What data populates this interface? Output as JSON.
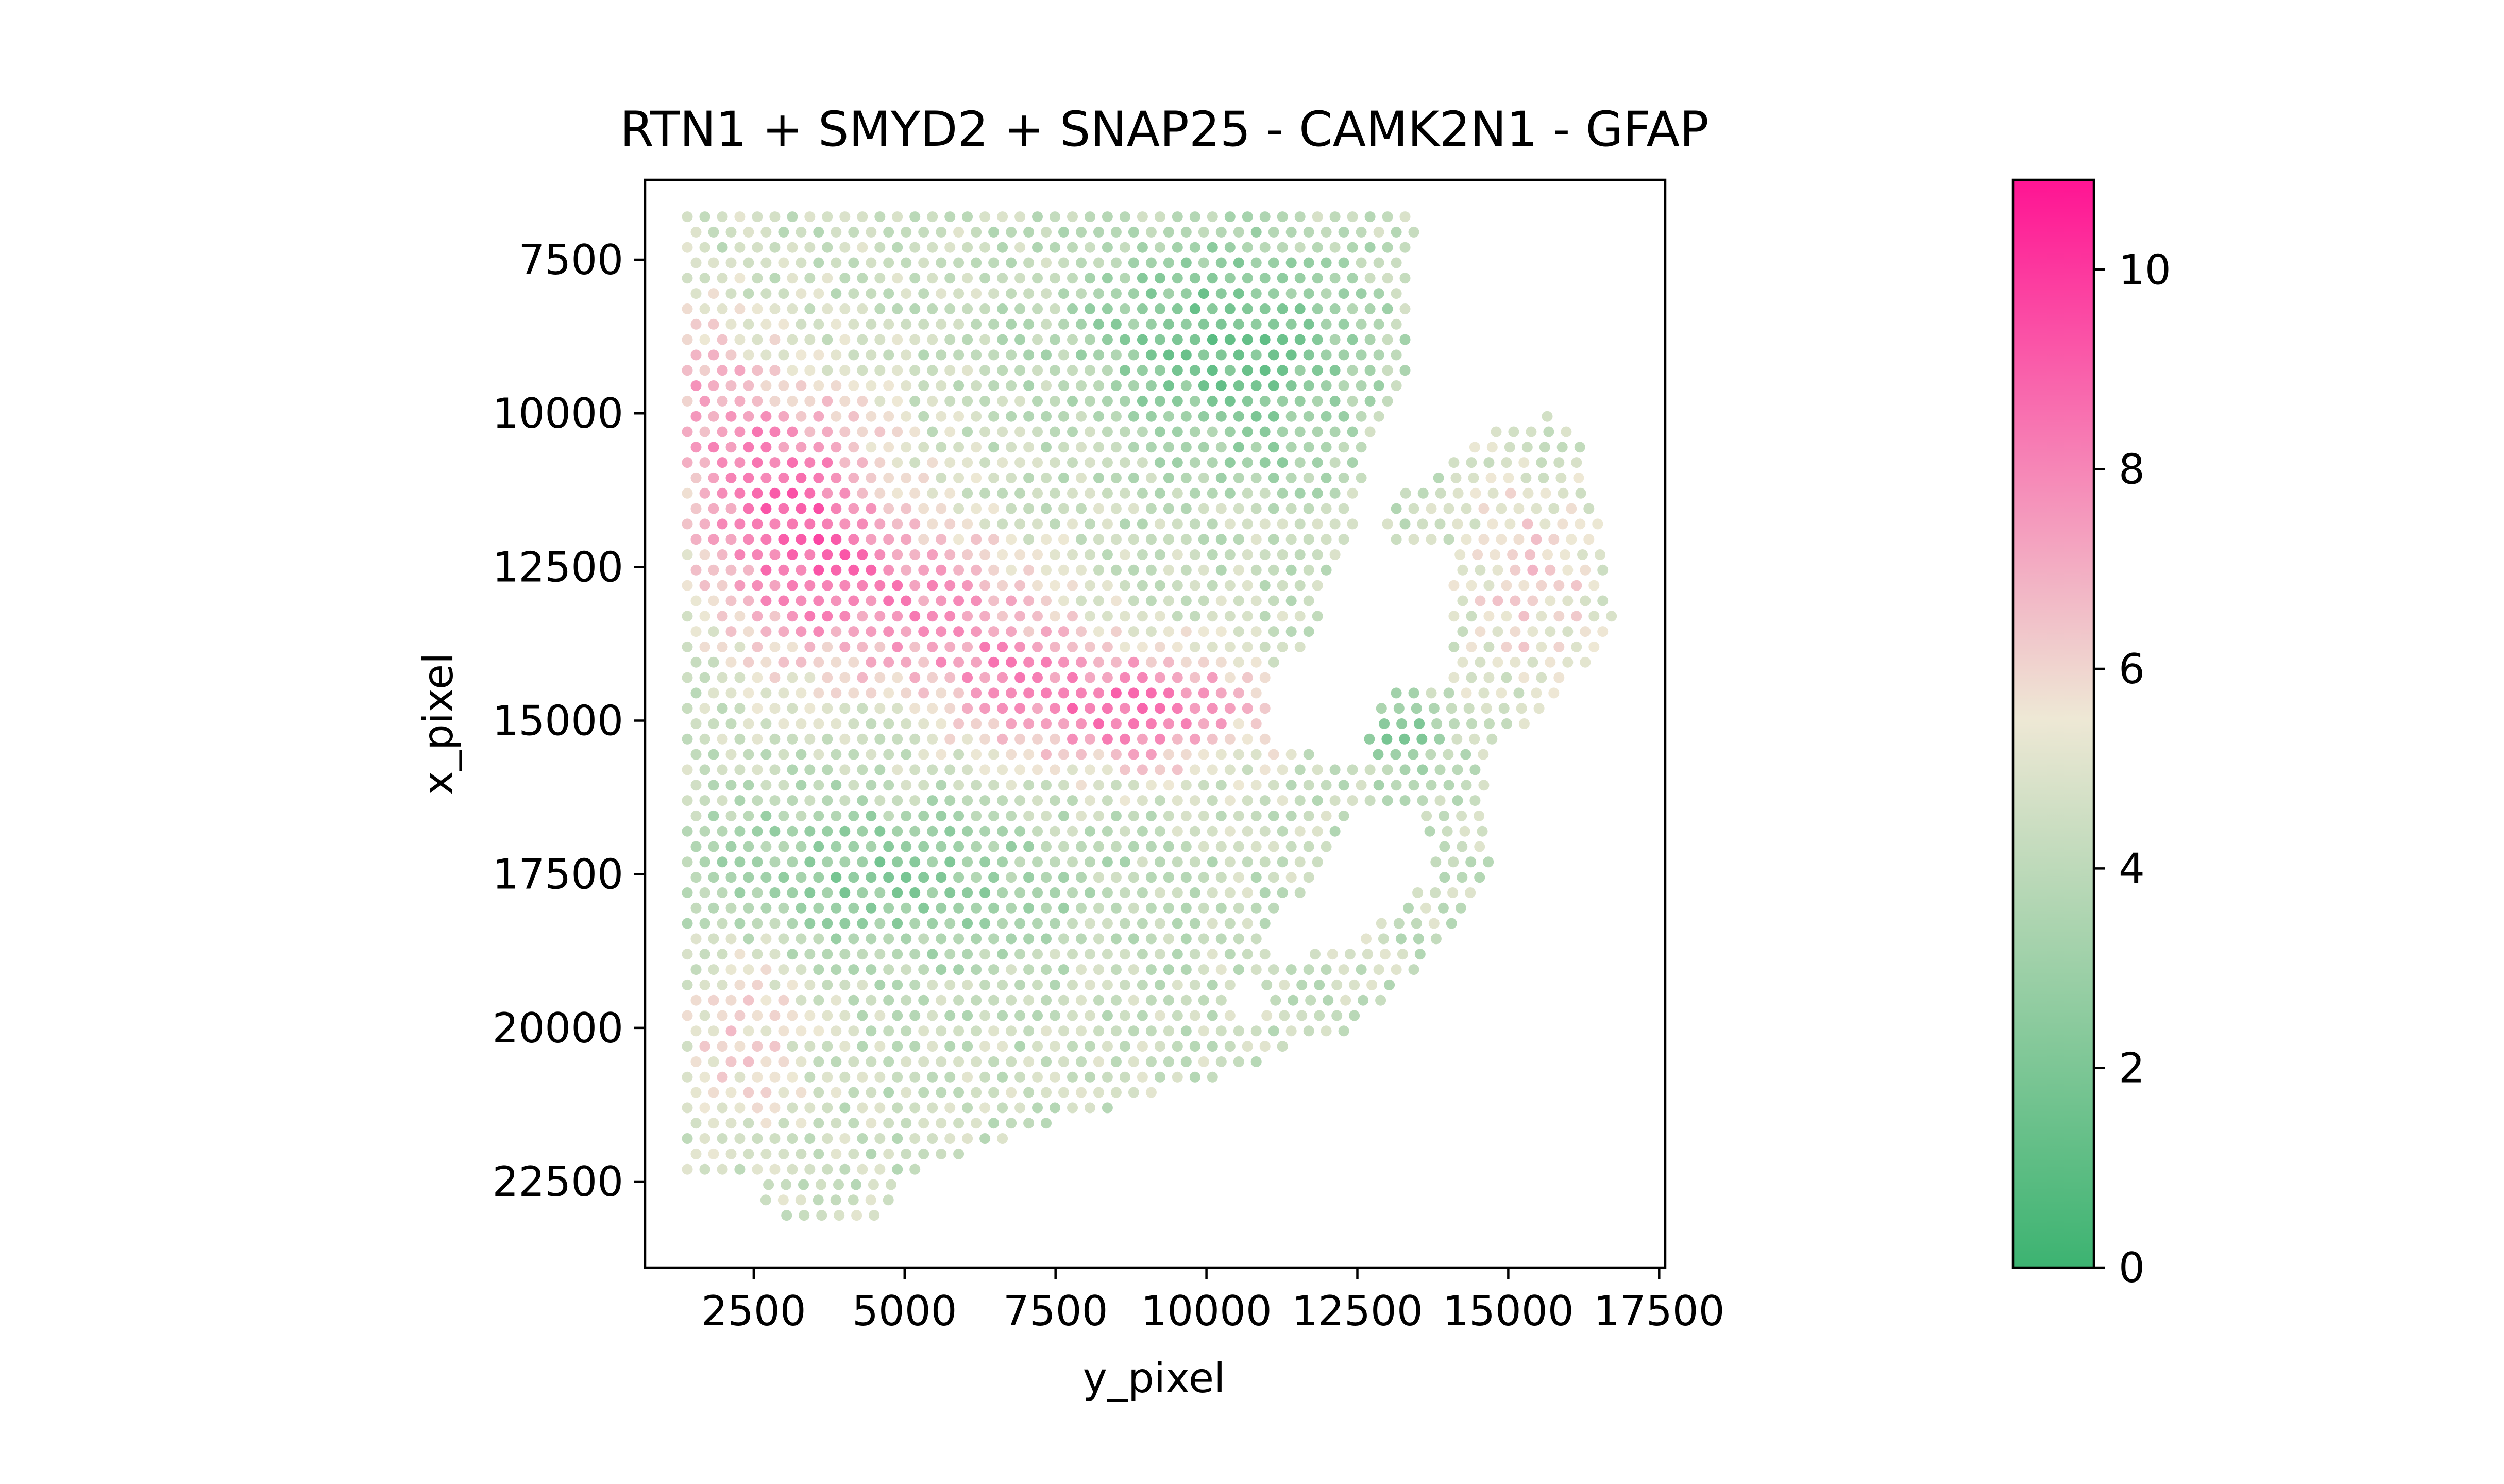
{
  "chart_data": {
    "type": "scatter",
    "title": "RTN1 + SMYD2 + SNAP25 - CAMK2N1 - GFAP",
    "xlabel": "y_pixel",
    "ylabel": "x_pixel",
    "xlim": [
      700,
      17600
    ],
    "ylim": [
      23900,
      6200
    ],
    "y_inverted": true,
    "xticks": [
      2500,
      5000,
      7500,
      10000,
      12500,
      15000,
      17500
    ],
    "xtick_labels": [
      "2500",
      "5000",
      "7500",
      "10000",
      "12500",
      "15000",
      "17500"
    ],
    "yticks": [
      7500,
      10000,
      12500,
      15000,
      17500,
      20000,
      22500
    ],
    "ytick_labels": [
      "7500",
      "10000",
      "12500",
      "15000",
      "17500",
      "20000",
      "22500"
    ],
    "grid": false,
    "colorbar": {
      "range": [
        0,
        10.9
      ],
      "ticks": [
        0,
        2,
        4,
        6,
        8,
        10
      ],
      "tick_labels": [
        "0",
        "2",
        "4",
        "6",
        "8",
        "10"
      ],
      "colors": [
        "#3cb371",
        "#eee8d5",
        "#ff1493"
      ]
    },
    "spot_pattern": {
      "row_spacing": 250,
      "col_spacing": 290,
      "rows": [
        {
          "x": 6800,
          "y_from": 1400,
          "y_to": 13300
        },
        {
          "x": 7050,
          "y_from": 1400,
          "y_to": 13500
        },
        {
          "x": 7300,
          "y_from": 1400,
          "y_to": 13300
        },
        {
          "x": 7550,
          "y_from": 1400,
          "y_to": 13300
        },
        {
          "x": 7800,
          "y_from": 1400,
          "y_to": 13300
        },
        {
          "x": 8050,
          "y_from": 1400,
          "y_to": 13300
        },
        {
          "x": 8300,
          "y_from": 1400,
          "y_to": 13300
        },
        {
          "x": 8550,
          "y_from": 1400,
          "y_to": 13300
        },
        {
          "x": 8800,
          "y_from": 1400,
          "y_to": 13300
        },
        {
          "x": 9050,
          "y_from": 1400,
          "y_to": 13300
        },
        {
          "x": 9300,
          "y_from": 1400,
          "y_to": 13300
        },
        {
          "x": 9550,
          "y_from": 1400,
          "y_to": 13300
        },
        {
          "x": 9800,
          "y_from": 1400,
          "y_to": 13200
        },
        {
          "x": 10050,
          "y_from": 1400,
          "y_to": 13000,
          "y2_from": 15500,
          "y2_to": 15900
        },
        {
          "x": 10300,
          "y_from": 1400,
          "y_to": 12900,
          "y2_from": 14800,
          "y2_to": 16200
        },
        {
          "x": 10550,
          "y_from": 1400,
          "y_to": 12800,
          "y2_from": 14300,
          "y2_to": 16200
        },
        {
          "x": 10800,
          "y_from": 1400,
          "y_to": 12700,
          "y2_from": 14100,
          "y2_to": 16300
        },
        {
          "x": 11050,
          "y_from": 1400,
          "y_to": 12700,
          "y2_from": 13700,
          "y2_to": 16300
        },
        {
          "x": 11300,
          "y_from": 1400,
          "y_to": 12600,
          "y2_from": 13300,
          "y2_to": 16400
        },
        {
          "x": 11550,
          "y_from": 1400,
          "y_to": 12500,
          "y2_from": 13000,
          "y2_to": 16500
        },
        {
          "x": 11800,
          "y_from": 1400,
          "y_to": 12500,
          "y2_from": 13000,
          "y2_to": 16500
        },
        {
          "x": 12050,
          "y_from": 1400,
          "y_to": 12300,
          "y2_from": 13000,
          "y2_to": 16600
        },
        {
          "x": 12300,
          "y_from": 1400,
          "y_to": 12200,
          "y2_from": 14200,
          "y2_to": 16600
        },
        {
          "x": 12550,
          "y_from": 1400,
          "y_to": 12100,
          "y2_from": 14100,
          "y2_to": 16600
        },
        {
          "x": 12800,
          "y_from": 1400,
          "y_to": 12000,
          "y2_from": 14100,
          "y2_to": 16700
        },
        {
          "x": 13050,
          "y_from": 1400,
          "y_to": 11900,
          "y2_from": 14100,
          "y2_to": 16700
        },
        {
          "x": 13300,
          "y_from": 1400,
          "y_to": 11900,
          "y2_from": 14100,
          "y2_to": 16900
        },
        {
          "x": 13550,
          "y_from": 1400,
          "y_to": 11900,
          "y2_from": 14100,
          "y2_to": 16700
        },
        {
          "x": 13800,
          "y_from": 1400,
          "y_to": 11600,
          "y2_from": 14100,
          "y2_to": 16500
        },
        {
          "x": 14050,
          "y_from": 1400,
          "y_to": 11300,
          "y2_from": 14100,
          "y2_to": 16400
        },
        {
          "x": 14300,
          "y_from": 1400,
          "y_to": 11100,
          "y2_from": 14100,
          "y2_to": 16100
        },
        {
          "x": 14550,
          "y_from": 1400,
          "y_to": 11000,
          "y2_from": 13000,
          "y2_to": 15900
        },
        {
          "x": 14800,
          "y_from": 1400,
          "y_to": 11000,
          "y2_from": 12900,
          "y2_to": 15700
        },
        {
          "x": 15050,
          "y_from": 1400,
          "y_to": 11000,
          "y2_from": 12800,
          "y2_to": 15300
        },
        {
          "x": 15300,
          "y_from": 1400,
          "y_to": 11000,
          "y2_from": 12700,
          "y2_to": 15000
        },
        {
          "x": 15550,
          "y_from": 1400,
          "y_to": 11800,
          "y2_from": 12700,
          "y2_to": 14700
        },
        {
          "x": 15800,
          "y_from": 1400,
          "y_to": 14700
        },
        {
          "x": 16050,
          "y_from": 1400,
          "y_to": 14700
        },
        {
          "x": 16300,
          "y_from": 1400,
          "y_to": 14700
        },
        {
          "x": 16550,
          "y_from": 1400,
          "y_to": 12300,
          "y2_from": 13500,
          "y2_to": 14700
        },
        {
          "x": 16800,
          "y_from": 1400,
          "y_to": 12300,
          "y2_from": 13700,
          "y2_to": 14700
        },
        {
          "x": 17050,
          "y_from": 1400,
          "y_to": 12200,
          "y2_from": 13800,
          "y2_to": 14700
        },
        {
          "x": 17300,
          "y_from": 1400,
          "y_to": 12000,
          "y2_from": 13800,
          "y2_to": 14700
        },
        {
          "x": 17550,
          "y_from": 1400,
          "y_to": 11800,
          "y2_from": 13800,
          "y2_to": 14700
        },
        {
          "x": 17800,
          "y_from": 1400,
          "y_to": 11600,
          "y2_from": 13500,
          "y2_to": 14500
        },
        {
          "x": 18050,
          "y_from": 1400,
          "y_to": 11400,
          "y2_from": 13200,
          "y2_to": 14300
        },
        {
          "x": 18300,
          "y_from": 1400,
          "y_to": 11200,
          "y2_from": 12900,
          "y2_to": 14100
        },
        {
          "x": 18550,
          "y_from": 1400,
          "y_to": 11000,
          "y2_from": 12500,
          "y2_to": 13900
        },
        {
          "x": 18800,
          "y_from": 1400,
          "y_to": 11000,
          "y2_from": 11800,
          "y2_to": 13700
        },
        {
          "x": 19050,
          "y_from": 1400,
          "y_to": 13500
        },
        {
          "x": 19300,
          "y_from": 1400,
          "y_to": 10600,
          "y2_from": 11000,
          "y2_to": 13300
        },
        {
          "x": 19550,
          "y_from": 1400,
          "y_to": 10500,
          "y2_from": 11000,
          "y2_to": 12900
        },
        {
          "x": 19800,
          "y_from": 1400,
          "y_to": 10500,
          "y2_from": 11000,
          "y2_to": 12600
        },
        {
          "x": 20050,
          "y_from": 1400,
          "y_to": 12300
        },
        {
          "x": 20300,
          "y_from": 1400,
          "y_to": 11400
        },
        {
          "x": 20550,
          "y_from": 1400,
          "y_to": 10900
        },
        {
          "x": 20800,
          "y_from": 1400,
          "y_to": 10200
        },
        {
          "x": 21050,
          "y_from": 1400,
          "y_to": 9300
        },
        {
          "x": 21300,
          "y_from": 1400,
          "y_to": 8400
        },
        {
          "x": 21550,
          "y_from": 1400,
          "y_to": 7500
        },
        {
          "x": 21800,
          "y_from": 1400,
          "y_to": 6700
        },
        {
          "x": 22050,
          "y_from": 1400,
          "y_to": 6000
        },
        {
          "x": 22300,
          "y_from": 1400,
          "y_to": 5300
        },
        {
          "x": 22550,
          "y_from": 2600,
          "y_to": 5000
        },
        {
          "x": 22800,
          "y_from": 2700,
          "y_to": 4800
        },
        {
          "x": 23050,
          "y_from": 2900,
          "y_to": 4600
        }
      ]
    },
    "value_field": {
      "base": 4.4,
      "noise": 0.8,
      "regions": [
        {
          "x": 8800,
          "y": 10300,
          "sx": 1600,
          "sy": 2300,
          "v": -2.8
        },
        {
          "x": 10500,
          "y": 11200,
          "sx": 900,
          "sy": 1000,
          "v": -0.9
        },
        {
          "x": 17600,
          "y": 4400,
          "sx": 1300,
          "sy": 3300,
          "v": -2.0
        },
        {
          "x": 15200,
          "y": 13200,
          "sx": 700,
          "sy": 700,
          "v": -2.2
        },
        {
          "x": 11200,
          "y": 3000,
          "sx": 1700,
          "sy": 1600,
          "v": 3.6
        },
        {
          "x": 12900,
          "y": 4200,
          "sx": 1500,
          "sy": 2200,
          "v": 3.0
        },
        {
          "x": 14800,
          "y": 8900,
          "sx": 1000,
          "sy": 2000,
          "v": 4.0
        },
        {
          "x": 14000,
          "y": 6500,
          "sx": 1400,
          "sy": 1500,
          "v": 2.2
        },
        {
          "x": 12700,
          "y": 15400,
          "sx": 1900,
          "sy": 1300,
          "v": 1.7
        },
        {
          "x": 9500,
          "y": 1700,
          "sx": 1400,
          "sy": 900,
          "v": 2.0
        },
        {
          "x": 19900,
          "y": 2300,
          "sx": 1800,
          "sy": 1200,
          "v": 1.6
        }
      ]
    }
  }
}
